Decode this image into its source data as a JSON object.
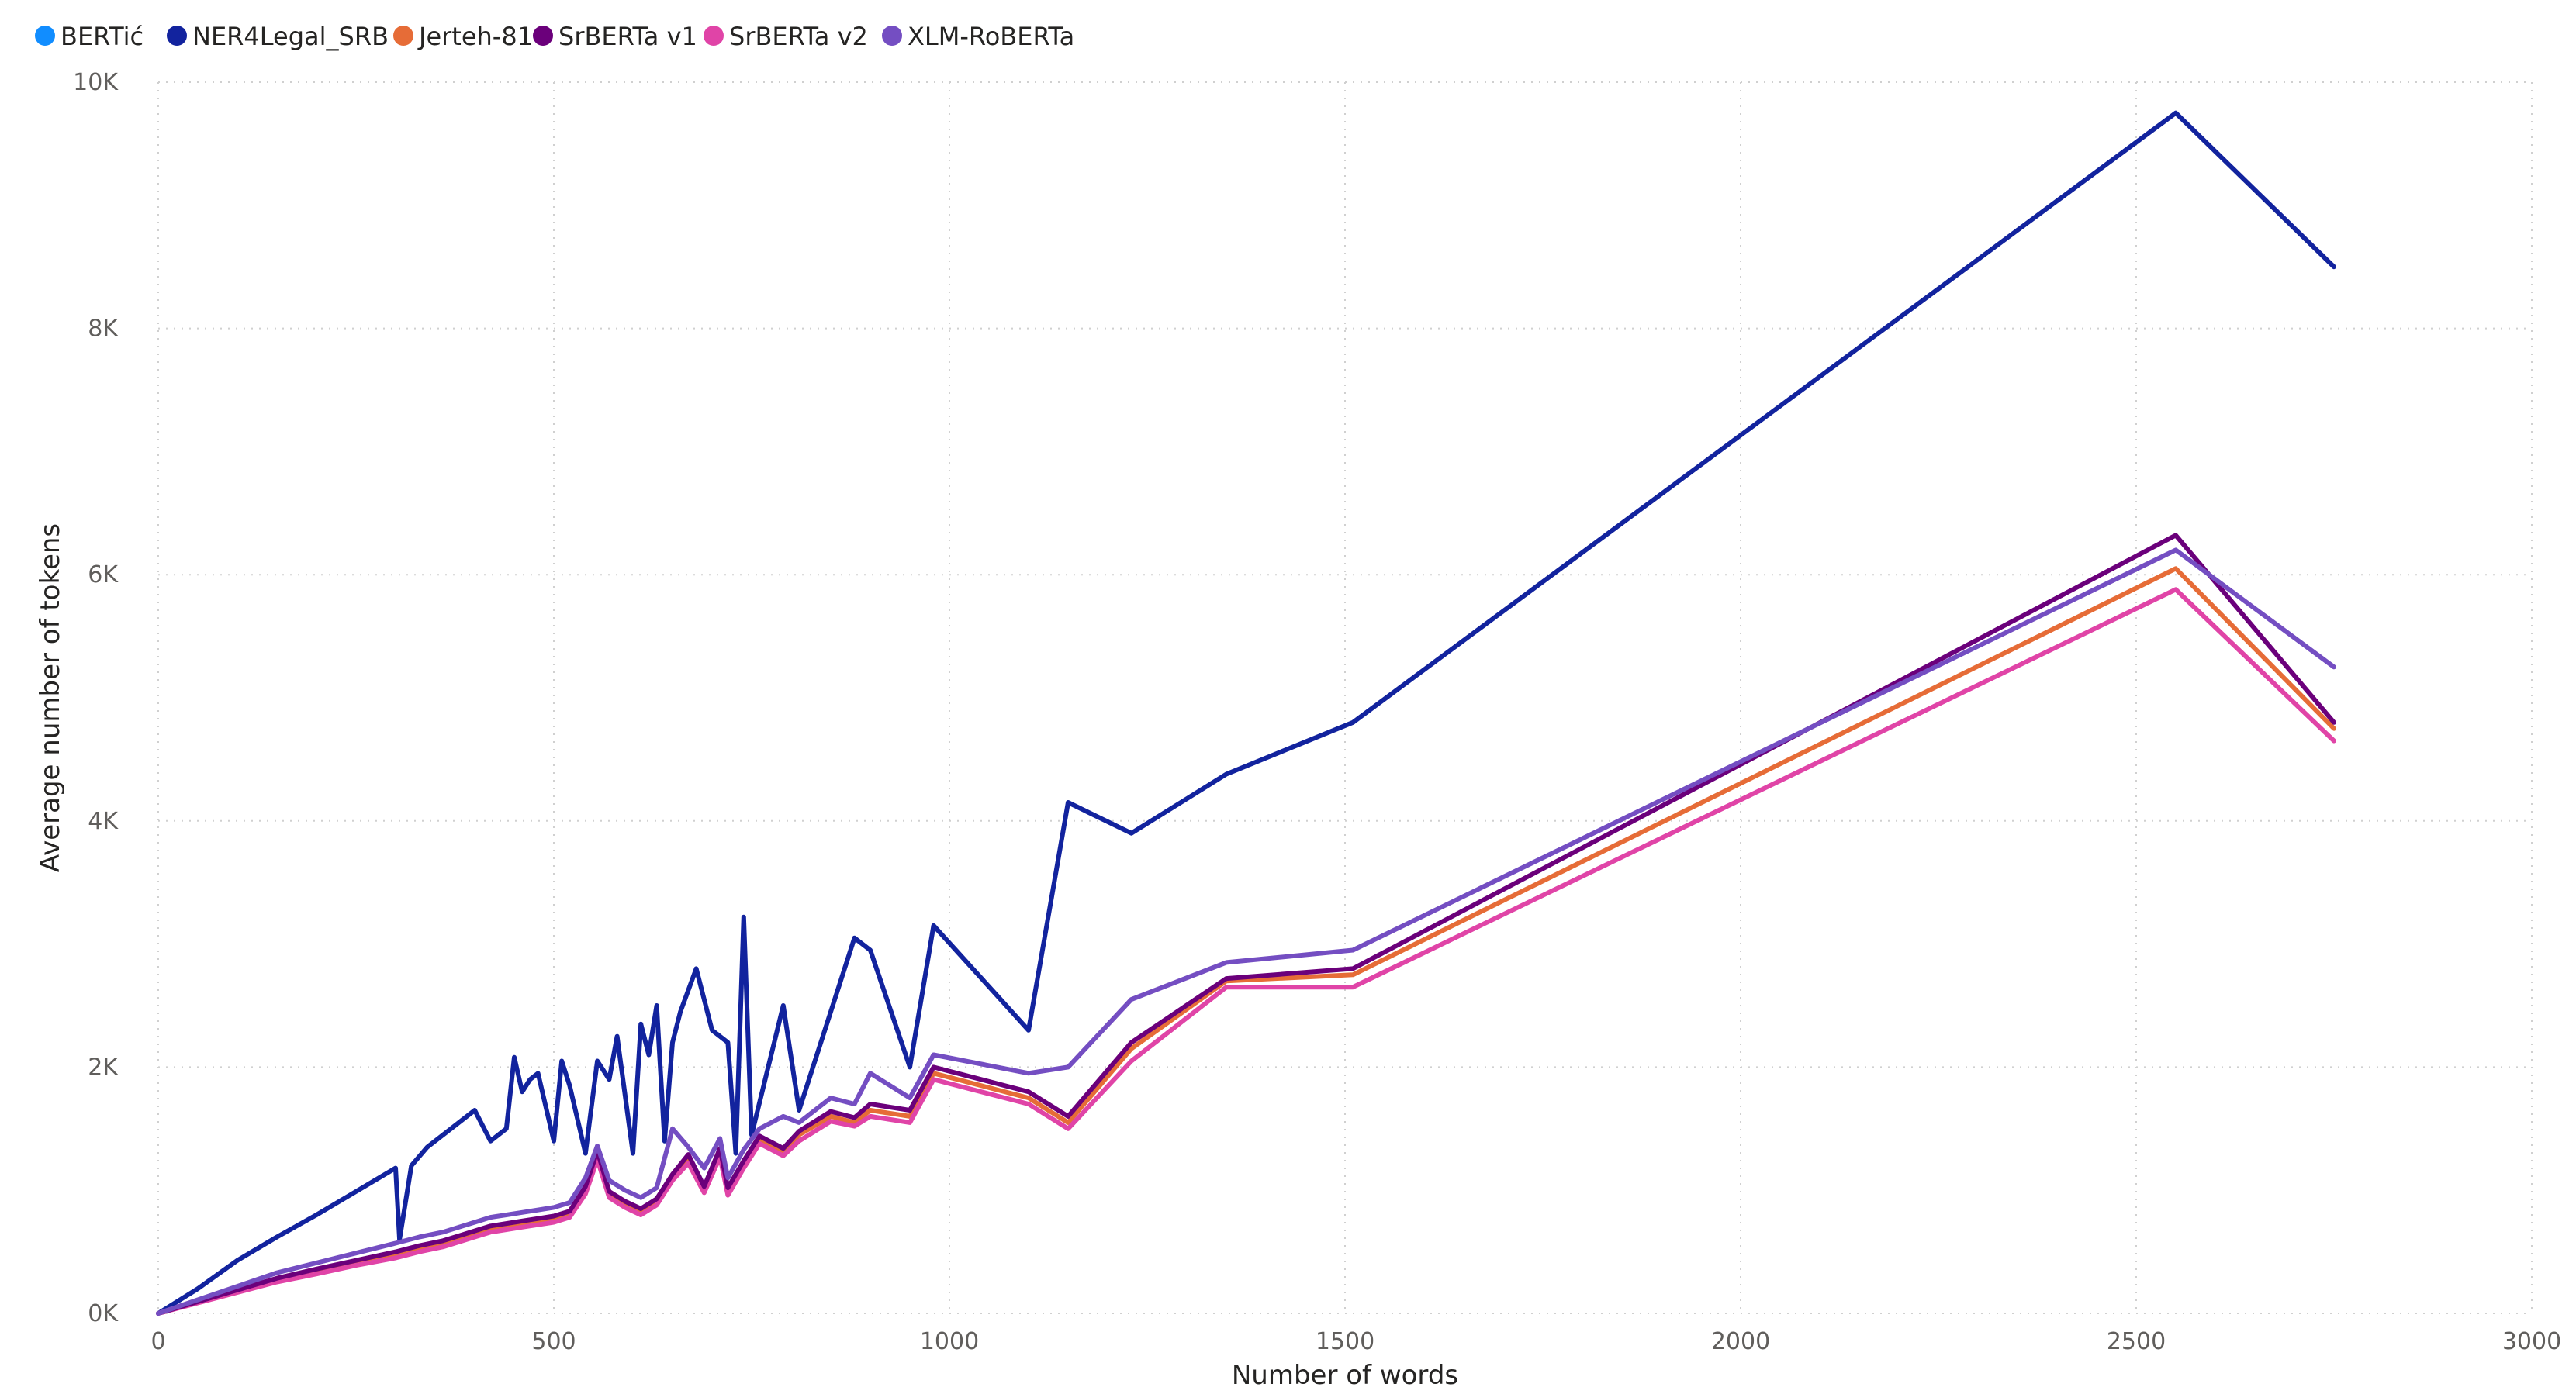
{
  "chart_data": {
    "type": "line",
    "title": "",
    "xlabel": "Number of words",
    "ylabel": "Average number of tokens",
    "xlim": [
      0,
      3000
    ],
    "ylim": [
      0,
      10000
    ],
    "x_ticks": [
      0,
      500,
      1000,
      1500,
      2000,
      2500,
      3000
    ],
    "x_tick_labels": [
      "0",
      "500",
      "1000",
      "1500",
      "2000",
      "2500",
      "3000"
    ],
    "y_ticks": [
      0,
      2000,
      4000,
      6000,
      8000,
      10000
    ],
    "y_tick_labels": [
      "0K",
      "2K",
      "4K",
      "6K",
      "8K",
      "10K"
    ],
    "grid": true,
    "legend_position": "top-left",
    "series": [
      {
        "name": "BERTić",
        "color": "#118DFF",
        "x": [],
        "y": []
      },
      {
        "name": "NER4Legal_SRB",
        "color": "#12239E",
        "x": [
          0,
          50,
          100,
          150,
          200,
          250,
          300,
          305,
          320,
          340,
          360,
          380,
          400,
          420,
          440,
          450,
          460,
          470,
          480,
          500,
          510,
          520,
          540,
          555,
          570,
          580,
          600,
          610,
          620,
          630,
          640,
          650,
          660,
          680,
          700,
          720,
          730,
          740,
          750,
          790,
          810,
          880,
          900,
          950,
          980,
          1100,
          1150,
          1230,
          1350,
          1510,
          2550,
          2750
        ],
        "y": [
          0,
          200,
          430,
          620,
          800,
          990,
          1180,
          600,
          1200,
          1350,
          1450,
          1550,
          1650,
          1400,
          1500,
          2080,
          1800,
          1900,
          1950,
          1400,
          2050,
          1850,
          1300,
          2050,
          1900,
          2250,
          1300,
          2350,
          2100,
          2500,
          1400,
          2200,
          2450,
          2800,
          2300,
          2200,
          1300,
          3220,
          1450,
          2500,
          1650,
          3050,
          2950,
          2000,
          3150,
          2300,
          4150,
          3900,
          4380,
          4800,
          9750,
          8500
        ]
      },
      {
        "name": "Jerteh-81",
        "color": "#E66C37",
        "x": [
          0,
          50,
          100,
          150,
          200,
          250,
          300,
          330,
          360,
          380,
          400,
          420,
          440,
          460,
          480,
          500,
          520,
          540,
          555,
          570,
          590,
          610,
          630,
          650,
          670,
          690,
          710,
          720,
          740,
          760,
          790,
          810,
          850,
          880,
          900,
          950,
          980,
          1100,
          1150,
          1230,
          1350,
          1510,
          2550,
          2750
        ],
        "y": [
          0,
          90,
          180,
          270,
          340,
          410,
          470,
          520,
          560,
          600,
          640,
          680,
          700,
          720,
          740,
          760,
          800,
          1000,
          1280,
          960,
          880,
          820,
          900,
          1100,
          1250,
          1000,
          1300,
          980,
          1200,
          1400,
          1300,
          1450,
          1600,
          1550,
          1650,
          1600,
          1950,
          1750,
          1550,
          2150,
          2700,
          2750,
          6050,
          4750
        ]
      },
      {
        "name": "SrBERTa v1",
        "color": "#6B007B",
        "x": [
          0,
          50,
          100,
          150,
          200,
          250,
          300,
          330,
          360,
          380,
          400,
          420,
          440,
          460,
          480,
          500,
          520,
          540,
          555,
          570,
          590,
          610,
          630,
          650,
          670,
          690,
          710,
          720,
          740,
          760,
          790,
          810,
          850,
          880,
          900,
          950,
          980,
          1100,
          1150,
          1230,
          1350,
          1510,
          2550,
          2750
        ],
        "y": [
          0,
          95,
          190,
          285,
          360,
          430,
          500,
          550,
          590,
          630,
          670,
          710,
          730,
          750,
          770,
          790,
          830,
          1030,
          1320,
          990,
          910,
          850,
          930,
          1130,
          1290,
          1030,
          1340,
          1020,
          1240,
          1440,
          1340,
          1480,
          1640,
          1590,
          1700,
          1650,
          2000,
          1800,
          1600,
          2200,
          2720,
          2800,
          6320,
          4800
        ]
      },
      {
        "name": "SrBERTa v2",
        "color": "#E044A7",
        "x": [
          0,
          50,
          100,
          150,
          200,
          250,
          300,
          330,
          360,
          380,
          400,
          420,
          440,
          460,
          480,
          500,
          520,
          540,
          555,
          570,
          590,
          610,
          630,
          650,
          670,
          690,
          710,
          720,
          740,
          760,
          790,
          810,
          850,
          880,
          900,
          950,
          980,
          1100,
          1150,
          1230,
          1350,
          1510,
          2550,
          2750
        ],
        "y": [
          0,
          85,
          170,
          255,
          320,
          390,
          450,
          500,
          540,
          580,
          620,
          660,
          680,
          700,
          720,
          740,
          780,
          970,
          1250,
          940,
          860,
          800,
          880,
          1080,
          1220,
          980,
          1270,
          960,
          1180,
          1380,
          1280,
          1400,
          1560,
          1520,
          1600,
          1550,
          1900,
          1700,
          1500,
          2050,
          2650,
          2650,
          5880,
          4650
        ]
      },
      {
        "name": "XLM-RoBERTa",
        "color": "#744EC2",
        "x": [
          0,
          50,
          100,
          150,
          200,
          250,
          300,
          330,
          360,
          380,
          400,
          420,
          440,
          460,
          480,
          500,
          520,
          540,
          555,
          570,
          590,
          610,
          630,
          650,
          670,
          690,
          710,
          720,
          740,
          760,
          790,
          810,
          850,
          880,
          900,
          950,
          980,
          1100,
          1150,
          1230,
          1350,
          1510,
          2550,
          2750
        ],
        "y": [
          0,
          110,
          220,
          330,
          410,
          490,
          570,
          620,
          660,
          700,
          740,
          780,
          800,
          820,
          840,
          860,
          900,
          1100,
          1360,
          1080,
          1000,
          940,
          1020,
          1500,
          1350,
          1180,
          1420,
          1100,
          1330,
          1500,
          1600,
          1550,
          1750,
          1700,
          1950,
          1750,
          2100,
          1950,
          2000,
          2550,
          2850,
          2950,
          6200,
          5250
        ]
      }
    ]
  }
}
